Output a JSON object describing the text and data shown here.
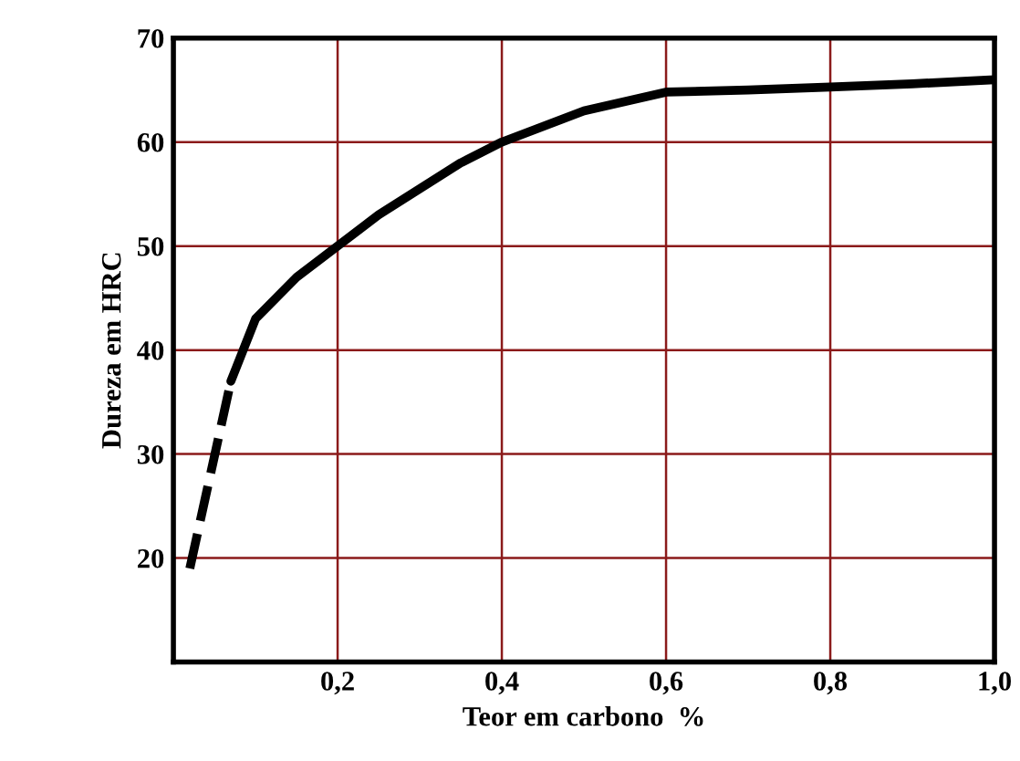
{
  "chart_data": {
    "type": "line",
    "xlabel": "Teor em carbono  %",
    "ylabel": "Dureza em HRC",
    "xlim": [
      0,
      1.0
    ],
    "xticks": [
      {
        "value": 0.2,
        "label": "0,2"
      },
      {
        "value": 0.4,
        "label": "0,4"
      },
      {
        "value": 0.6,
        "label": "0,6"
      },
      {
        "value": 0.8,
        "label": "0,8"
      },
      {
        "value": 1.0,
        "label": "1,0"
      }
    ],
    "ylim": [
      10,
      70
    ],
    "yticks": [
      20,
      30,
      40,
      50,
      60,
      70
    ],
    "grid": true,
    "series": [
      {
        "color": "#000000",
        "line_style": "dashed",
        "x": [
          0.02,
          0.045,
          0.07
        ],
        "values": [
          19,
          28,
          37
        ]
      },
      {
        "color": "#000000",
        "line_style": "solid",
        "x": [
          0.07,
          0.1,
          0.15,
          0.2,
          0.25,
          0.3,
          0.35,
          0.4,
          0.5,
          0.6,
          0.7,
          0.8,
          0.9,
          1.0
        ],
        "values": [
          37,
          43,
          47,
          50,
          53,
          55.5,
          58,
          60,
          63,
          64.8,
          65,
          65.3,
          65.6,
          66
        ]
      }
    ]
  }
}
